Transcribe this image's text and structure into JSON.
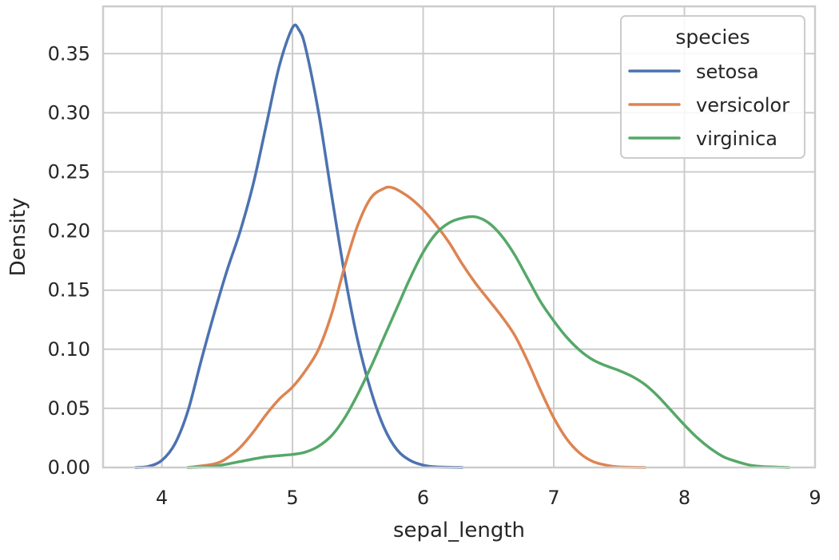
{
  "chart_data": {
    "type": "line",
    "xlabel": "sepal_length",
    "ylabel": "Density",
    "xlim": [
      3.55,
      9.0
    ],
    "ylim": [
      0,
      0.39
    ],
    "xticks": [
      {
        "value": 4,
        "label": "4"
      },
      {
        "value": 5,
        "label": "5"
      },
      {
        "value": 6,
        "label": "6"
      },
      {
        "value": 7,
        "label": "7"
      },
      {
        "value": 8,
        "label": "8"
      },
      {
        "value": 9,
        "label": "9"
      }
    ],
    "yticks": [
      {
        "value": 0.0,
        "label": "0.00"
      },
      {
        "value": 0.05,
        "label": "0.05"
      },
      {
        "value": 0.1,
        "label": "0.10"
      },
      {
        "value": 0.15,
        "label": "0.15"
      },
      {
        "value": 0.2,
        "label": "0.20"
      },
      {
        "value": 0.25,
        "label": "0.25"
      },
      {
        "value": 0.3,
        "label": "0.30"
      },
      {
        "value": 0.35,
        "label": "0.35"
      }
    ],
    "grid": true,
    "legend": {
      "title": "species",
      "position": "top-right"
    },
    "series": [
      {
        "name": "setosa",
        "color": "#4c72b0",
        "points": [
          [
            3.8,
            0.0
          ],
          [
            3.9,
            0.001
          ],
          [
            4.0,
            0.006
          ],
          [
            4.1,
            0.02
          ],
          [
            4.2,
            0.048
          ],
          [
            4.3,
            0.09
          ],
          [
            4.4,
            0.13
          ],
          [
            4.5,
            0.167
          ],
          [
            4.6,
            0.2
          ],
          [
            4.7,
            0.24
          ],
          [
            4.8,
            0.29
          ],
          [
            4.9,
            0.34
          ],
          [
            5.0,
            0.372
          ],
          [
            5.05,
            0.37
          ],
          [
            5.1,
            0.355
          ],
          [
            5.2,
            0.3
          ],
          [
            5.3,
            0.23
          ],
          [
            5.4,
            0.163
          ],
          [
            5.5,
            0.107
          ],
          [
            5.6,
            0.065
          ],
          [
            5.7,
            0.034
          ],
          [
            5.8,
            0.015
          ],
          [
            5.9,
            0.006
          ],
          [
            6.0,
            0.002
          ],
          [
            6.1,
            0.0005
          ],
          [
            6.3,
            0.0
          ]
        ]
      },
      {
        "name": "versicolor",
        "color": "#dd8452",
        "points": [
          [
            4.2,
            0.0
          ],
          [
            4.4,
            0.003
          ],
          [
            4.5,
            0.008
          ],
          [
            4.6,
            0.017
          ],
          [
            4.7,
            0.03
          ],
          [
            4.8,
            0.045
          ],
          [
            4.9,
            0.058
          ],
          [
            5.0,
            0.068
          ],
          [
            5.1,
            0.082
          ],
          [
            5.2,
            0.1
          ],
          [
            5.3,
            0.13
          ],
          [
            5.4,
            0.17
          ],
          [
            5.5,
            0.205
          ],
          [
            5.6,
            0.228
          ],
          [
            5.7,
            0.236
          ],
          [
            5.75,
            0.237
          ],
          [
            5.8,
            0.235
          ],
          [
            5.9,
            0.228
          ],
          [
            6.0,
            0.218
          ],
          [
            6.1,
            0.205
          ],
          [
            6.2,
            0.19
          ],
          [
            6.3,
            0.172
          ],
          [
            6.4,
            0.156
          ],
          [
            6.5,
            0.142
          ],
          [
            6.6,
            0.128
          ],
          [
            6.7,
            0.112
          ],
          [
            6.8,
            0.09
          ],
          [
            6.9,
            0.065
          ],
          [
            7.0,
            0.042
          ],
          [
            7.1,
            0.024
          ],
          [
            7.2,
            0.012
          ],
          [
            7.3,
            0.005
          ],
          [
            7.4,
            0.002
          ],
          [
            7.5,
            0.0005
          ],
          [
            7.7,
            0.0
          ]
        ]
      },
      {
        "name": "virginica",
        "color": "#55a868",
        "points": [
          [
            4.2,
            0.0
          ],
          [
            4.4,
            0.001
          ],
          [
            4.6,
            0.005
          ],
          [
            4.8,
            0.009
          ],
          [
            5.0,
            0.011
          ],
          [
            5.1,
            0.013
          ],
          [
            5.2,
            0.018
          ],
          [
            5.3,
            0.027
          ],
          [
            5.4,
            0.042
          ],
          [
            5.5,
            0.062
          ],
          [
            5.6,
            0.085
          ],
          [
            5.7,
            0.11
          ],
          [
            5.8,
            0.135
          ],
          [
            5.9,
            0.16
          ],
          [
            6.0,
            0.182
          ],
          [
            6.1,
            0.198
          ],
          [
            6.2,
            0.207
          ],
          [
            6.3,
            0.211
          ],
          [
            6.4,
            0.212
          ],
          [
            6.5,
            0.207
          ],
          [
            6.6,
            0.196
          ],
          [
            6.7,
            0.18
          ],
          [
            6.8,
            0.16
          ],
          [
            6.9,
            0.14
          ],
          [
            7.0,
            0.124
          ],
          [
            7.1,
            0.11
          ],
          [
            7.2,
            0.099
          ],
          [
            7.3,
            0.091
          ],
          [
            7.4,
            0.086
          ],
          [
            7.5,
            0.082
          ],
          [
            7.6,
            0.077
          ],
          [
            7.7,
            0.07
          ],
          [
            7.8,
            0.06
          ],
          [
            7.9,
            0.048
          ],
          [
            8.0,
            0.036
          ],
          [
            8.1,
            0.025
          ],
          [
            8.2,
            0.016
          ],
          [
            8.3,
            0.009
          ],
          [
            8.4,
            0.005
          ],
          [
            8.5,
            0.002
          ],
          [
            8.6,
            0.0008
          ],
          [
            8.8,
            0.0
          ]
        ]
      }
    ]
  }
}
